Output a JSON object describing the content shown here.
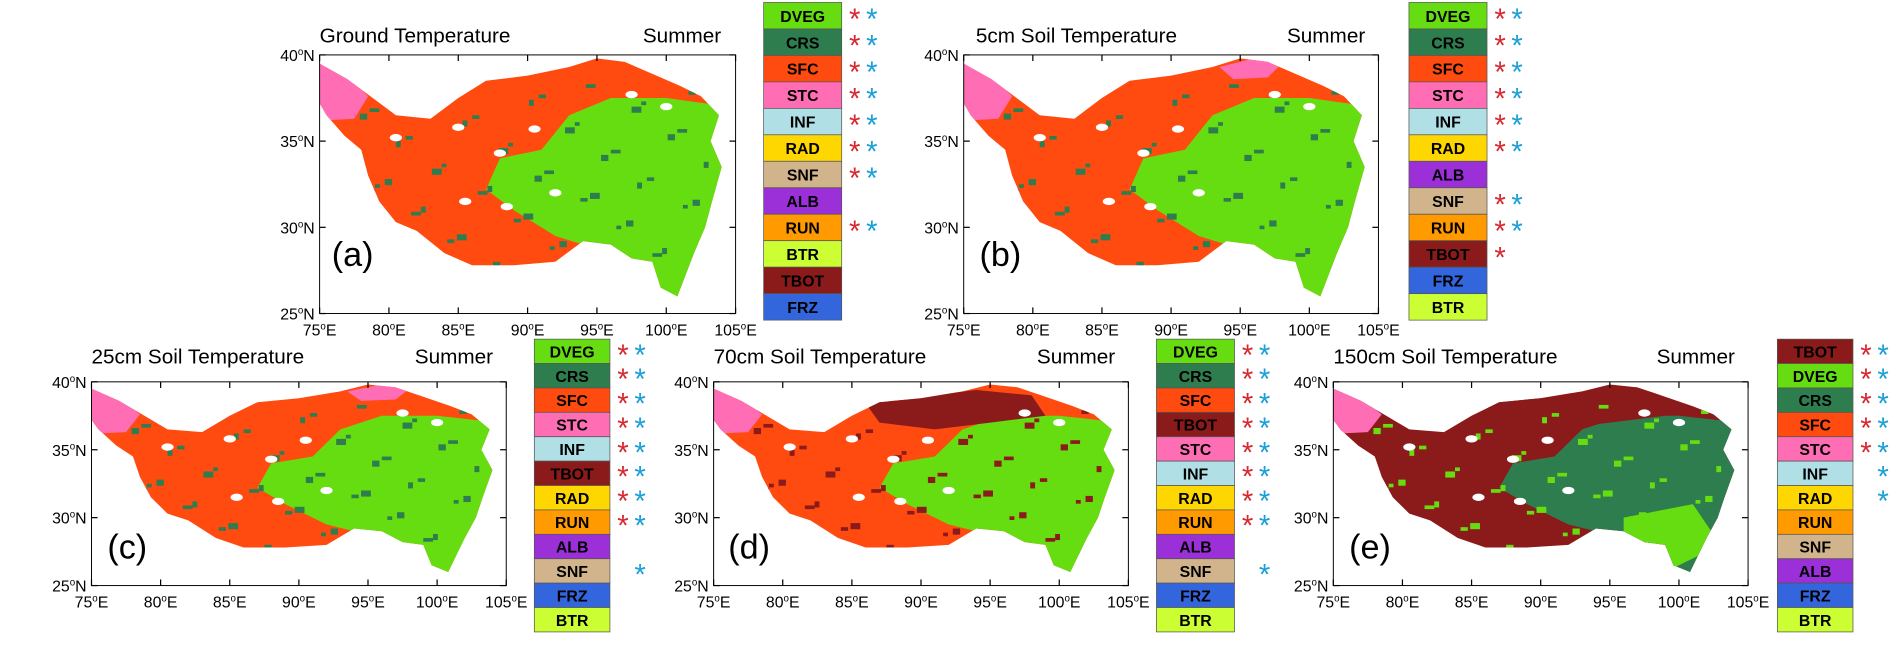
{
  "season": "Summer",
  "x_ticks": [
    "75",
    "80",
    "85",
    "90",
    "95",
    "100",
    "105"
  ],
  "x_suffix": "E",
  "y_ticks": [
    "25",
    "30",
    "35",
    "40"
  ],
  "y_suffix": "N",
  "asterisk": "*",
  "colors": {
    "DVEG": "#66dd11",
    "CRS": "#2e7d4f",
    "SFC": "#ff4a10",
    "STC": "#ff6eb4",
    "INF": "#b0dfe6",
    "RAD": "#ffd700",
    "SNF": "#d2b48c",
    "ALB": "#9b30d9",
    "RUN": "#ff9a00",
    "BTR": "#ccff33",
    "TBOT": "#8b1a1a",
    "FRZ": "#3366dd",
    "red_star": "#d62830",
    "blue_star": "#1a9fd8"
  },
  "panels": [
    {
      "label": "(a)",
      "title": "Ground Temperature",
      "base": "SFC",
      "east": "DVEG",
      "patch": "CRS",
      "legend": [
        [
          "DVEG",
          1,
          1
        ],
        [
          "CRS",
          1,
          1
        ],
        [
          "SFC",
          1,
          1
        ],
        [
          "STC",
          1,
          1
        ],
        [
          "INF",
          1,
          1
        ],
        [
          "RAD",
          1,
          1
        ],
        [
          "SNF",
          1,
          1
        ],
        [
          "ALB",
          0,
          0
        ],
        [
          "RUN",
          1,
          1
        ],
        [
          "BTR",
          0,
          0
        ],
        [
          "TBOT",
          0,
          0
        ],
        [
          "FRZ",
          0,
          0
        ]
      ]
    },
    {
      "label": "(b)",
      "title": "5cm Soil Temperature",
      "base": "SFC",
      "east": "DVEG",
      "patch": "CRS",
      "legend": [
        [
          "DVEG",
          1,
          1
        ],
        [
          "CRS",
          1,
          1
        ],
        [
          "SFC",
          1,
          1
        ],
        [
          "STC",
          1,
          1
        ],
        [
          "INF",
          1,
          1
        ],
        [
          "RAD",
          1,
          1
        ],
        [
          "ALB",
          0,
          0
        ],
        [
          "SNF",
          1,
          1
        ],
        [
          "RUN",
          1,
          1
        ],
        [
          "TBOT",
          1,
          0
        ],
        [
          "FRZ",
          0,
          0
        ],
        [
          "BTR",
          0,
          0
        ]
      ]
    },
    {
      "label": "(c)",
      "title": "25cm Soil Temperature",
      "base": "SFC",
      "east": "DVEG",
      "patch": "CRS",
      "legend": [
        [
          "DVEG",
          1,
          1
        ],
        [
          "CRS",
          1,
          1
        ],
        [
          "SFC",
          1,
          1
        ],
        [
          "STC",
          1,
          1
        ],
        [
          "INF",
          1,
          1
        ],
        [
          "TBOT",
          1,
          1
        ],
        [
          "RAD",
          1,
          1
        ],
        [
          "RUN",
          1,
          1
        ],
        [
          "ALB",
          0,
          0
        ],
        [
          "SNF",
          0,
          1
        ],
        [
          "FRZ",
          0,
          0
        ],
        [
          "BTR",
          0,
          0
        ]
      ]
    },
    {
      "label": "(d)",
      "title": "70cm Soil Temperature",
      "base": "SFC",
      "east": "DVEG",
      "patch": "TBOT",
      "legend": [
        [
          "DVEG",
          1,
          1
        ],
        [
          "CRS",
          1,
          1
        ],
        [
          "SFC",
          1,
          1
        ],
        [
          "TBOT",
          1,
          1
        ],
        [
          "STC",
          1,
          1
        ],
        [
          "INF",
          1,
          1
        ],
        [
          "RAD",
          1,
          1
        ],
        [
          "RUN",
          1,
          1
        ],
        [
          "ALB",
          0,
          0
        ],
        [
          "SNF",
          0,
          1
        ],
        [
          "FRZ",
          0,
          0
        ],
        [
          "BTR",
          0,
          0
        ]
      ]
    },
    {
      "label": "(e)",
      "title": "150cm Soil Temperature",
      "base": "TBOT",
      "east": "CRS",
      "patch": "DVEG",
      "legend": [
        [
          "TBOT",
          1,
          1
        ],
        [
          "DVEG",
          1,
          1
        ],
        [
          "CRS",
          1,
          1
        ],
        [
          "SFC",
          1,
          1
        ],
        [
          "STC",
          1,
          1
        ],
        [
          "INF",
          0,
          1
        ],
        [
          "RAD",
          0,
          1
        ],
        [
          "RUN",
          0,
          0
        ],
        [
          "SNF",
          0,
          0
        ],
        [
          "ALB",
          0,
          0
        ],
        [
          "FRZ",
          0,
          0
        ],
        [
          "BTR",
          0,
          0
        ]
      ]
    }
  ]
}
